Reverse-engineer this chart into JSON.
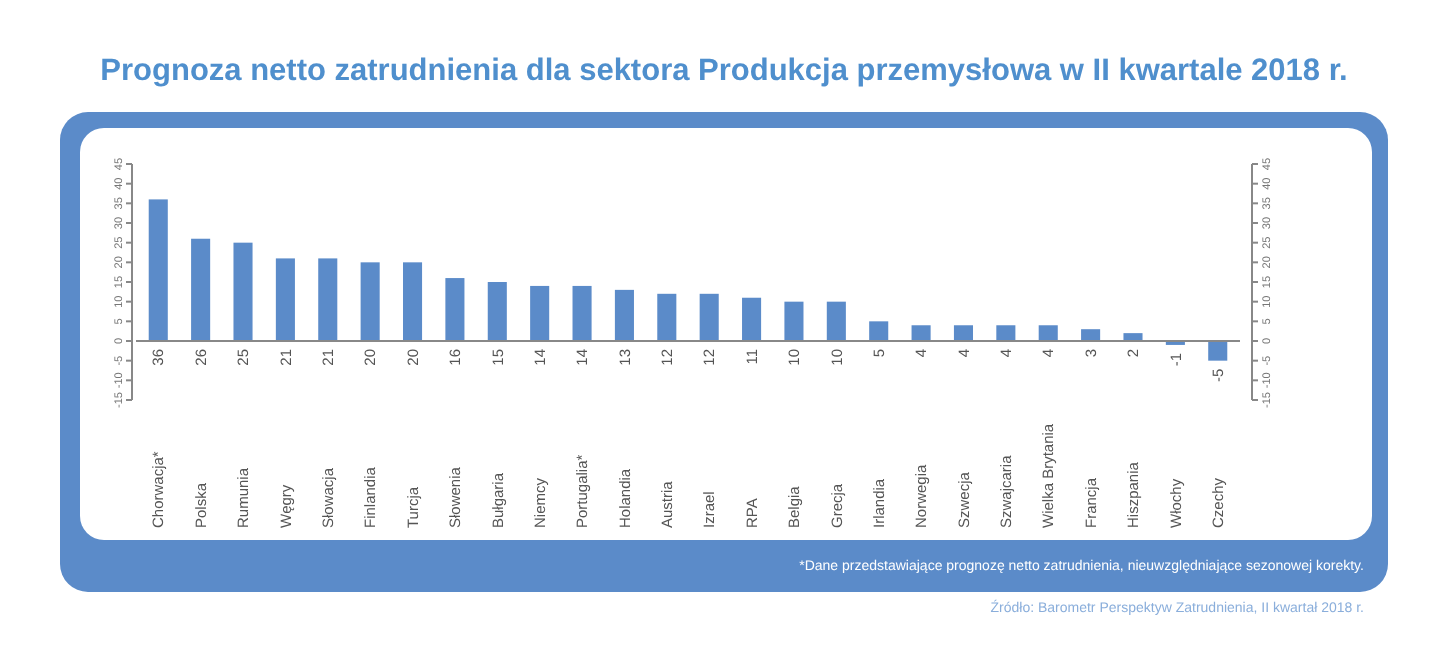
{
  "chart_data": {
    "type": "bar",
    "title": "Prognoza netto zatrudnienia dla sektora Produkcja przemysłowa w II kwartale 2018 r.",
    "categories": [
      "Chorwacja*",
      "Polska",
      "Rumunia",
      "Węgry",
      "Słowacja",
      "Finlandia",
      "Turcja",
      "Słowenia",
      "Bułgaria",
      "Niemcy",
      "Portugalia*",
      "Holandia",
      "Austria",
      "Izrael",
      "RPA",
      "Belgia",
      "Grecja",
      "Irlandia",
      "Norwegia",
      "Szwecja",
      "Szwajcaria",
      "Wielka Brytania",
      "Francja",
      "Hiszpania",
      "Włochy",
      "Czechy"
    ],
    "values": [
      36,
      26,
      25,
      21,
      21,
      20,
      20,
      16,
      15,
      14,
      14,
      13,
      12,
      12,
      11,
      10,
      10,
      5,
      4,
      4,
      4,
      4,
      3,
      2,
      -1,
      -5
    ],
    "color": "#5b8bc9",
    "data_labels": true,
    "ylim": [
      -15,
      45
    ],
    "yticks": [
      -15,
      -10,
      -5,
      0,
      5,
      10,
      15,
      20,
      25,
      30,
      35,
      40,
      45
    ],
    "y2lim": [
      -15,
      45
    ],
    "y2ticks": [
      -15,
      -10,
      -5,
      0,
      5,
      10,
      15,
      20,
      25,
      30,
      35,
      40,
      45
    ],
    "annotations": [
      "*Dane przedstawiające prognozę netto zatrudnienia, nieuwzględniające sezonowej korekty.",
      "Źródło: Barometr Perspektyw Zatrudnienia, II kwartał 2018 r."
    ]
  }
}
